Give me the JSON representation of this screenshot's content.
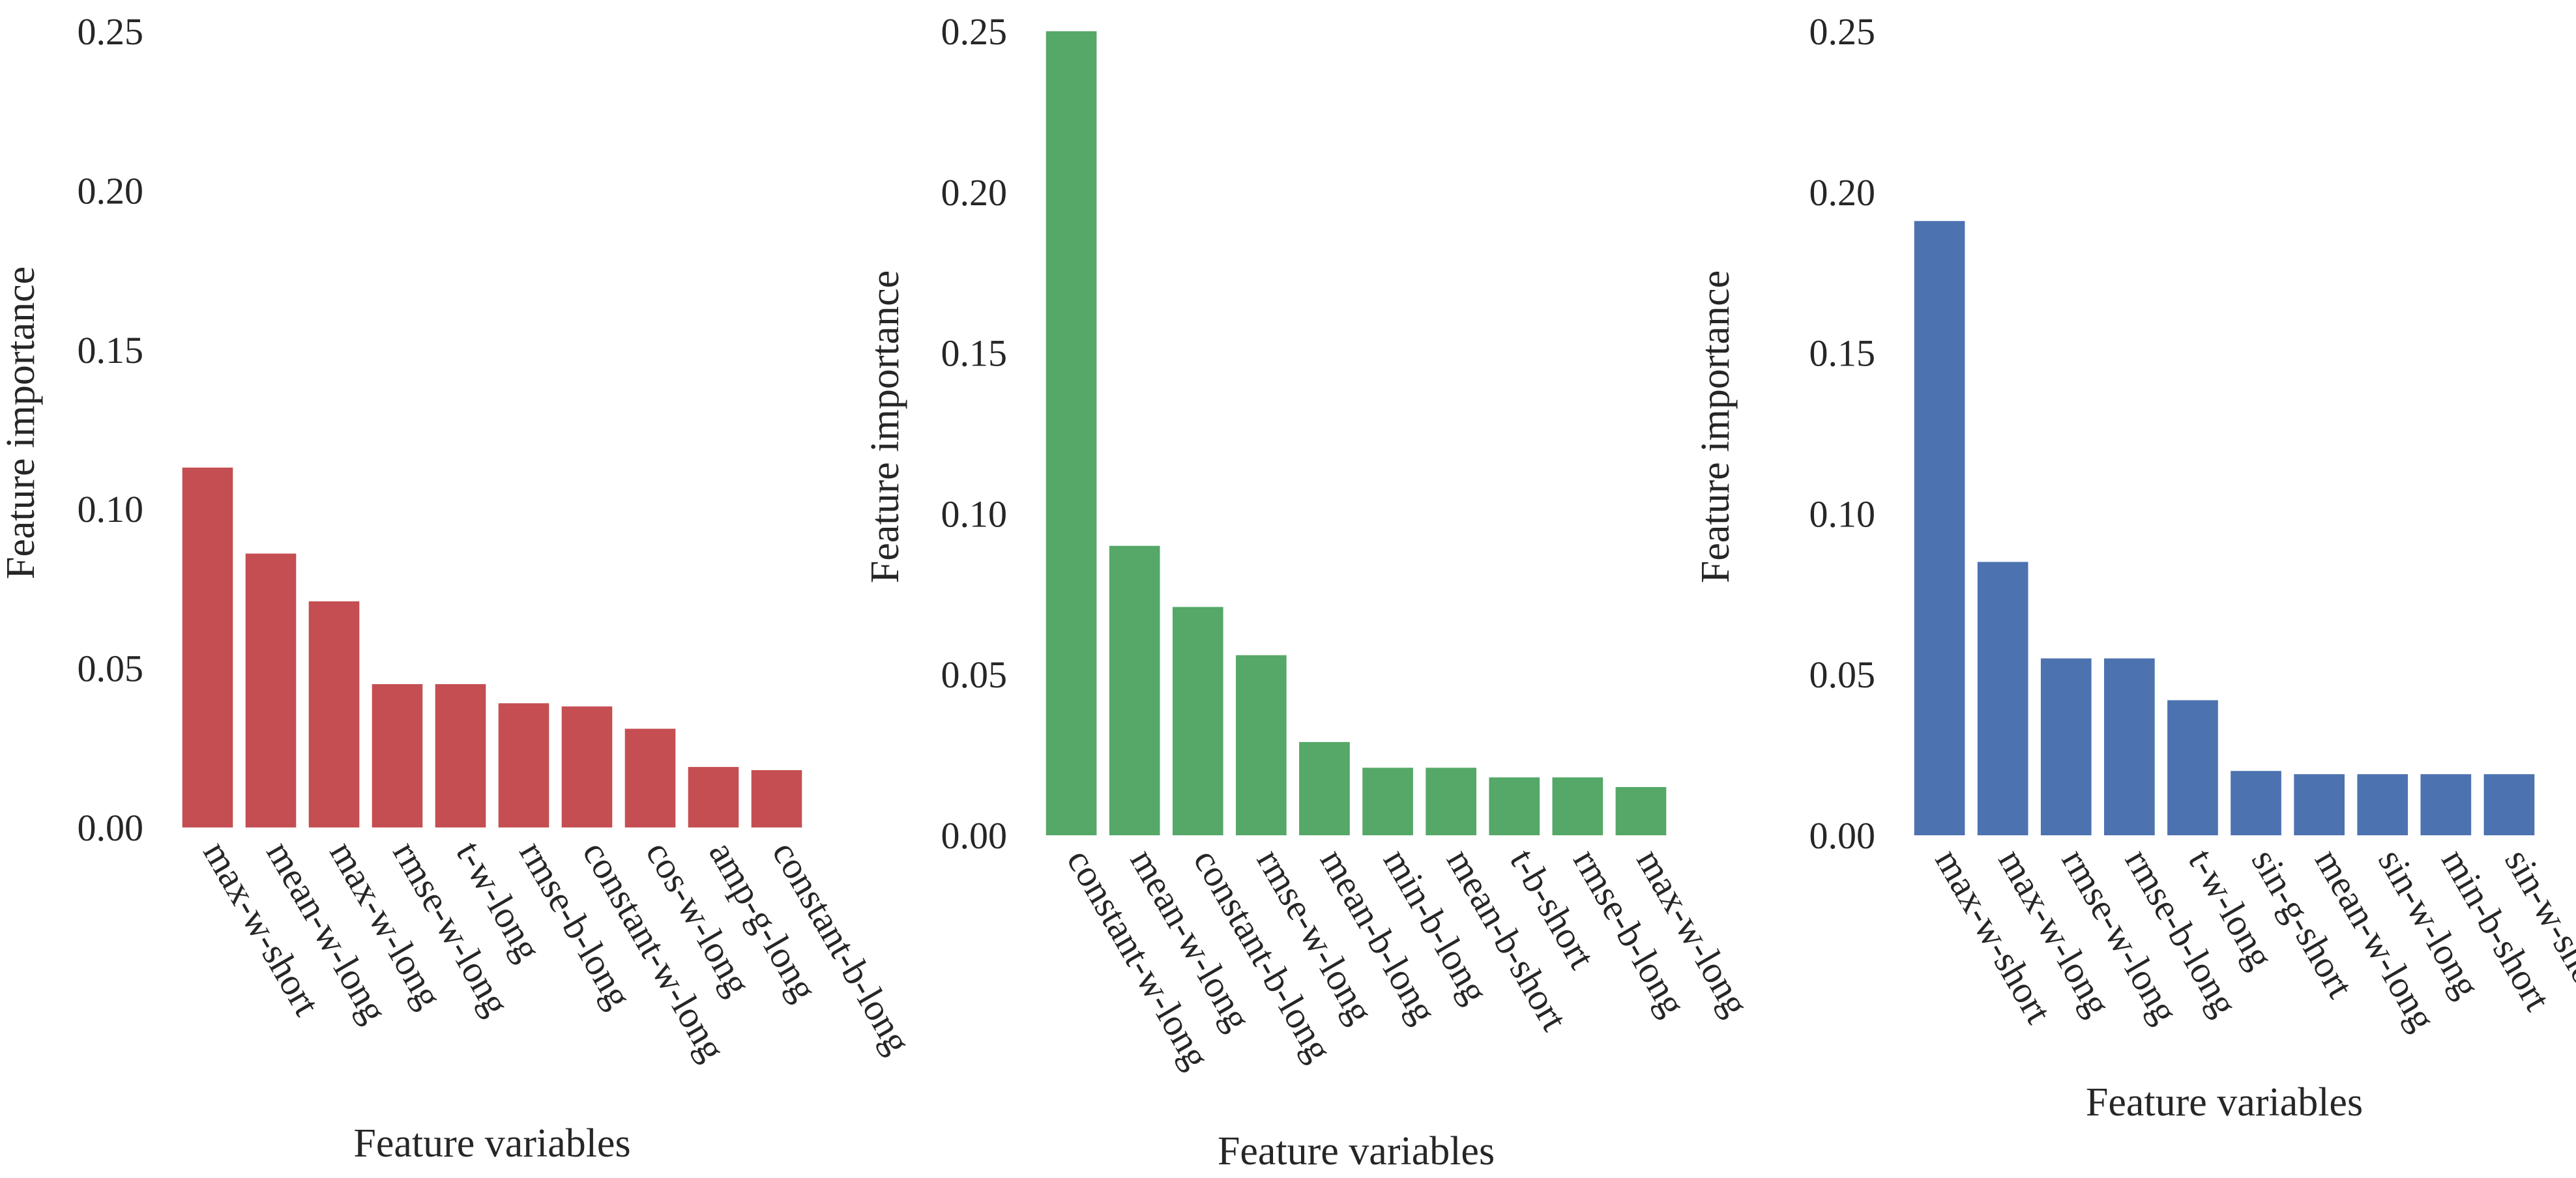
{
  "chart_data": [
    {
      "type": "bar",
      "color": "#C44E52",
      "categories": [
        "max-w-short",
        "mean-w-long",
        "max-w-long",
        "rmse-w-long",
        "t-w-long",
        "rmse-b-long",
        "constant-w-long",
        "cos-w-long",
        "amp-g-long",
        "constant-b-long"
      ],
      "values": [
        0.113,
        0.086,
        0.071,
        0.045,
        0.045,
        0.039,
        0.038,
        0.031,
        0.019,
        0.018
      ],
      "ylim": [
        0,
        0.25
      ],
      "yticks": [
        "0.00",
        "0.05",
        "0.10",
        "0.15",
        "0.20",
        "0.25"
      ],
      "xlabel": "Feature variables",
      "ylabel": "Feature importance",
      "title": ""
    },
    {
      "type": "bar",
      "color": "#55A868",
      "categories": [
        "constant-w-long",
        "mean-w-long",
        "constant-b-long",
        "rmse-w-long",
        "mean-b-long",
        "min-b-long",
        "mean-b-short",
        "t-b-short",
        "rmse-b-long",
        "max-w-long"
      ],
      "values": [
        0.25,
        0.09,
        0.071,
        0.056,
        0.029,
        0.021,
        0.021,
        0.018,
        0.018,
        0.015
      ],
      "ylim": [
        0,
        0.25
      ],
      "yticks": [
        "0.00",
        "0.05",
        "0.10",
        "0.15",
        "0.20",
        "0.25"
      ],
      "xlabel": "Feature variables",
      "ylabel": "Feature importance",
      "title": ""
    },
    {
      "type": "bar",
      "color": "#4C72B0",
      "categories": [
        "max-w-short",
        "max-w-long",
        "rmse-w-long",
        "rmse-b-long",
        "t-w-long",
        "sin-g-short",
        "mean-w-long",
        "sin-w-long",
        "min-b-short",
        "sin-w-short"
      ],
      "values": [
        0.191,
        0.085,
        0.055,
        0.055,
        0.042,
        0.02,
        0.019,
        0.019,
        0.019,
        0.019
      ],
      "ylim": [
        0,
        0.25
      ],
      "yticks": [
        "0.00",
        "0.05",
        "0.10",
        "0.15",
        "0.20",
        "0.25"
      ],
      "xlabel": "Feature variables",
      "ylabel": "Feature importance",
      "title": ""
    }
  ]
}
